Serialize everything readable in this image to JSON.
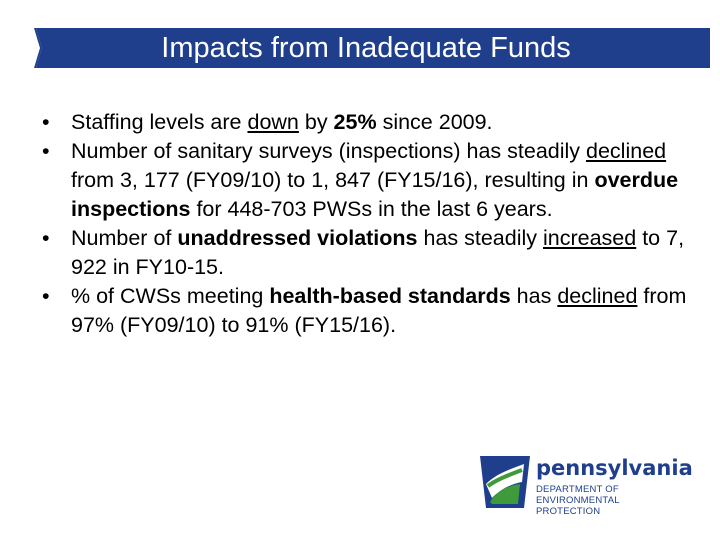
{
  "title": "Impacts from Inadequate Funds",
  "bullets": [
    {
      "parts": [
        {
          "text": "Staffing levels are "
        },
        {
          "text": "down",
          "style": "u"
        },
        {
          "text": " by "
        },
        {
          "text": "25%",
          "style": "b"
        },
        {
          "text": " since 2009."
        }
      ]
    },
    {
      "parts": [
        {
          "text": "Number of sanitary surveys (inspections) has steadily "
        },
        {
          "text": "declined",
          "style": "u"
        },
        {
          "text": " from 3, 177 (FY09/10) to 1, 847 (FY15/16), resulting in "
        },
        {
          "text": "overdue inspections",
          "style": "b"
        },
        {
          "text": " for 448-703 PWSs in the last 6 years."
        }
      ]
    },
    {
      "parts": [
        {
          "text": "Number of "
        },
        {
          "text": "unaddressed violations",
          "style": "b"
        },
        {
          "text": " has steadily "
        },
        {
          "text": "increased",
          "style": "u"
        },
        {
          "text": " to 7, 922 in FY10-15."
        }
      ]
    },
    {
      "parts": [
        {
          "text": "% of CWSs meeting "
        },
        {
          "text": "health-based standards",
          "style": "b"
        },
        {
          "text": " has "
        },
        {
          "text": "declined",
          "style": "u"
        },
        {
          "text": " from 97% (FY09/10) to 91% (FY15/16)."
        }
      ]
    }
  ],
  "bullet_glyph": "•",
  "logo": {
    "name": "pennsylvania",
    "line1": "DEPARTMENT OF ENVIRONMENTAL",
    "line2": "PROTECTION"
  },
  "colors": {
    "title_bar": "#1f3e8c",
    "logo_blue": "#1f3e8c",
    "logo_green": "#3f9b3a"
  }
}
